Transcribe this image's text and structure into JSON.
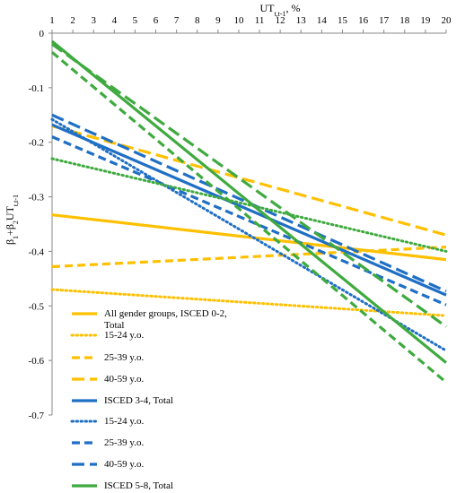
{
  "chart_data": {
    "type": "line",
    "xlabel": "UTt,t-1, %",
    "ylabel": "β1+β2UTt,t-1",
    "xlim": [
      1,
      20
    ],
    "ylim": [
      -0.7,
      0
    ],
    "x_ticks": [
      1,
      2,
      3,
      4,
      5,
      6,
      7,
      8,
      9,
      10,
      11,
      12,
      13,
      14,
      15,
      16,
      17,
      18,
      19,
      20
    ],
    "y_ticks": [
      0,
      -0.1,
      -0.2,
      -0.3,
      -0.4,
      -0.5,
      -0.6,
      -0.7
    ],
    "y_tick_labels": [
      "0",
      "-0.1",
      "-0.2",
      "-0.3",
      "-0.4",
      "-0.5",
      "-0.6",
      "-0.7"
    ],
    "grid": false,
    "legend_position": "bottom-left",
    "series": [
      {
        "name": "All gender groups, ISCED 0-2, Total",
        "color": "#FFC000",
        "style": "solid",
        "x": [
          1,
          20
        ],
        "y": [
          -0.333,
          -0.415
        ]
      },
      {
        "name": "15-24 y.o.",
        "color": "#FFC000",
        "style": "dotted",
        "x": [
          1,
          20
        ],
        "y": [
          -0.47,
          -0.518
        ]
      },
      {
        "name": "25-39 y.o.",
        "color": "#FFC000",
        "style": "dashed",
        "x": [
          1,
          20
        ],
        "y": [
          -0.428,
          -0.392
        ]
      },
      {
        "name": "40-59 y.o.",
        "color": "#FFC000",
        "style": "longdash",
        "x": [
          1,
          20
        ],
        "y": [
          -0.17,
          -0.37
        ]
      },
      {
        "name": "ISCED 3-4, Total",
        "color": "#1F6FC5",
        "style": "solid",
        "x": [
          1,
          20
        ],
        "y": [
          -0.168,
          -0.48
        ]
      },
      {
        "name": "15-24 y.o.",
        "color": "#1F6FC5",
        "style": "dotted",
        "x": [
          1,
          20
        ],
        "y": [
          -0.158,
          -0.582
        ]
      },
      {
        "name": "25-39 y.o.",
        "color": "#1F6FC5",
        "style": "dashed",
        "x": [
          1,
          20
        ],
        "y": [
          -0.19,
          -0.498
        ]
      },
      {
        "name": "40-59 y.o.",
        "color": "#1F6FC5",
        "style": "longdash",
        "x": [
          1,
          20
        ],
        "y": [
          -0.15,
          -0.473
        ]
      },
      {
        "name": "ISCED 5-8, Total",
        "color": "#3FAA3F",
        "style": "solid",
        "x": [
          1,
          20
        ],
        "y": [
          -0.015,
          -0.604
        ]
      },
      {
        "name": "",
        "color": "#3FAA3F",
        "style": "dotted",
        "x": [
          1,
          20
        ],
        "y": [
          -0.23,
          -0.4
        ]
      },
      {
        "name": "",
        "color": "#3FAA3F",
        "style": "dashed",
        "x": [
          1,
          20
        ],
        "y": [
          -0.035,
          -0.64
        ]
      },
      {
        "name": "",
        "color": "#3FAA3F",
        "style": "longdash",
        "x": [
          1,
          20
        ],
        "y": [
          -0.02,
          -0.538
        ]
      }
    ],
    "legend_lines": [
      [
        "All gender groups, ISCED 0-2,",
        "Total"
      ],
      [
        "15-24 y.o."
      ],
      [
        "25-39 y.o."
      ],
      [
        "40-59 y.o."
      ],
      [
        "ISCED 3-4, Total"
      ],
      [
        "15-24 y.o."
      ],
      [
        "25-39 y.o."
      ],
      [
        "40-59 y.o."
      ],
      [
        "ISCED 5-8, Total"
      ]
    ]
  }
}
